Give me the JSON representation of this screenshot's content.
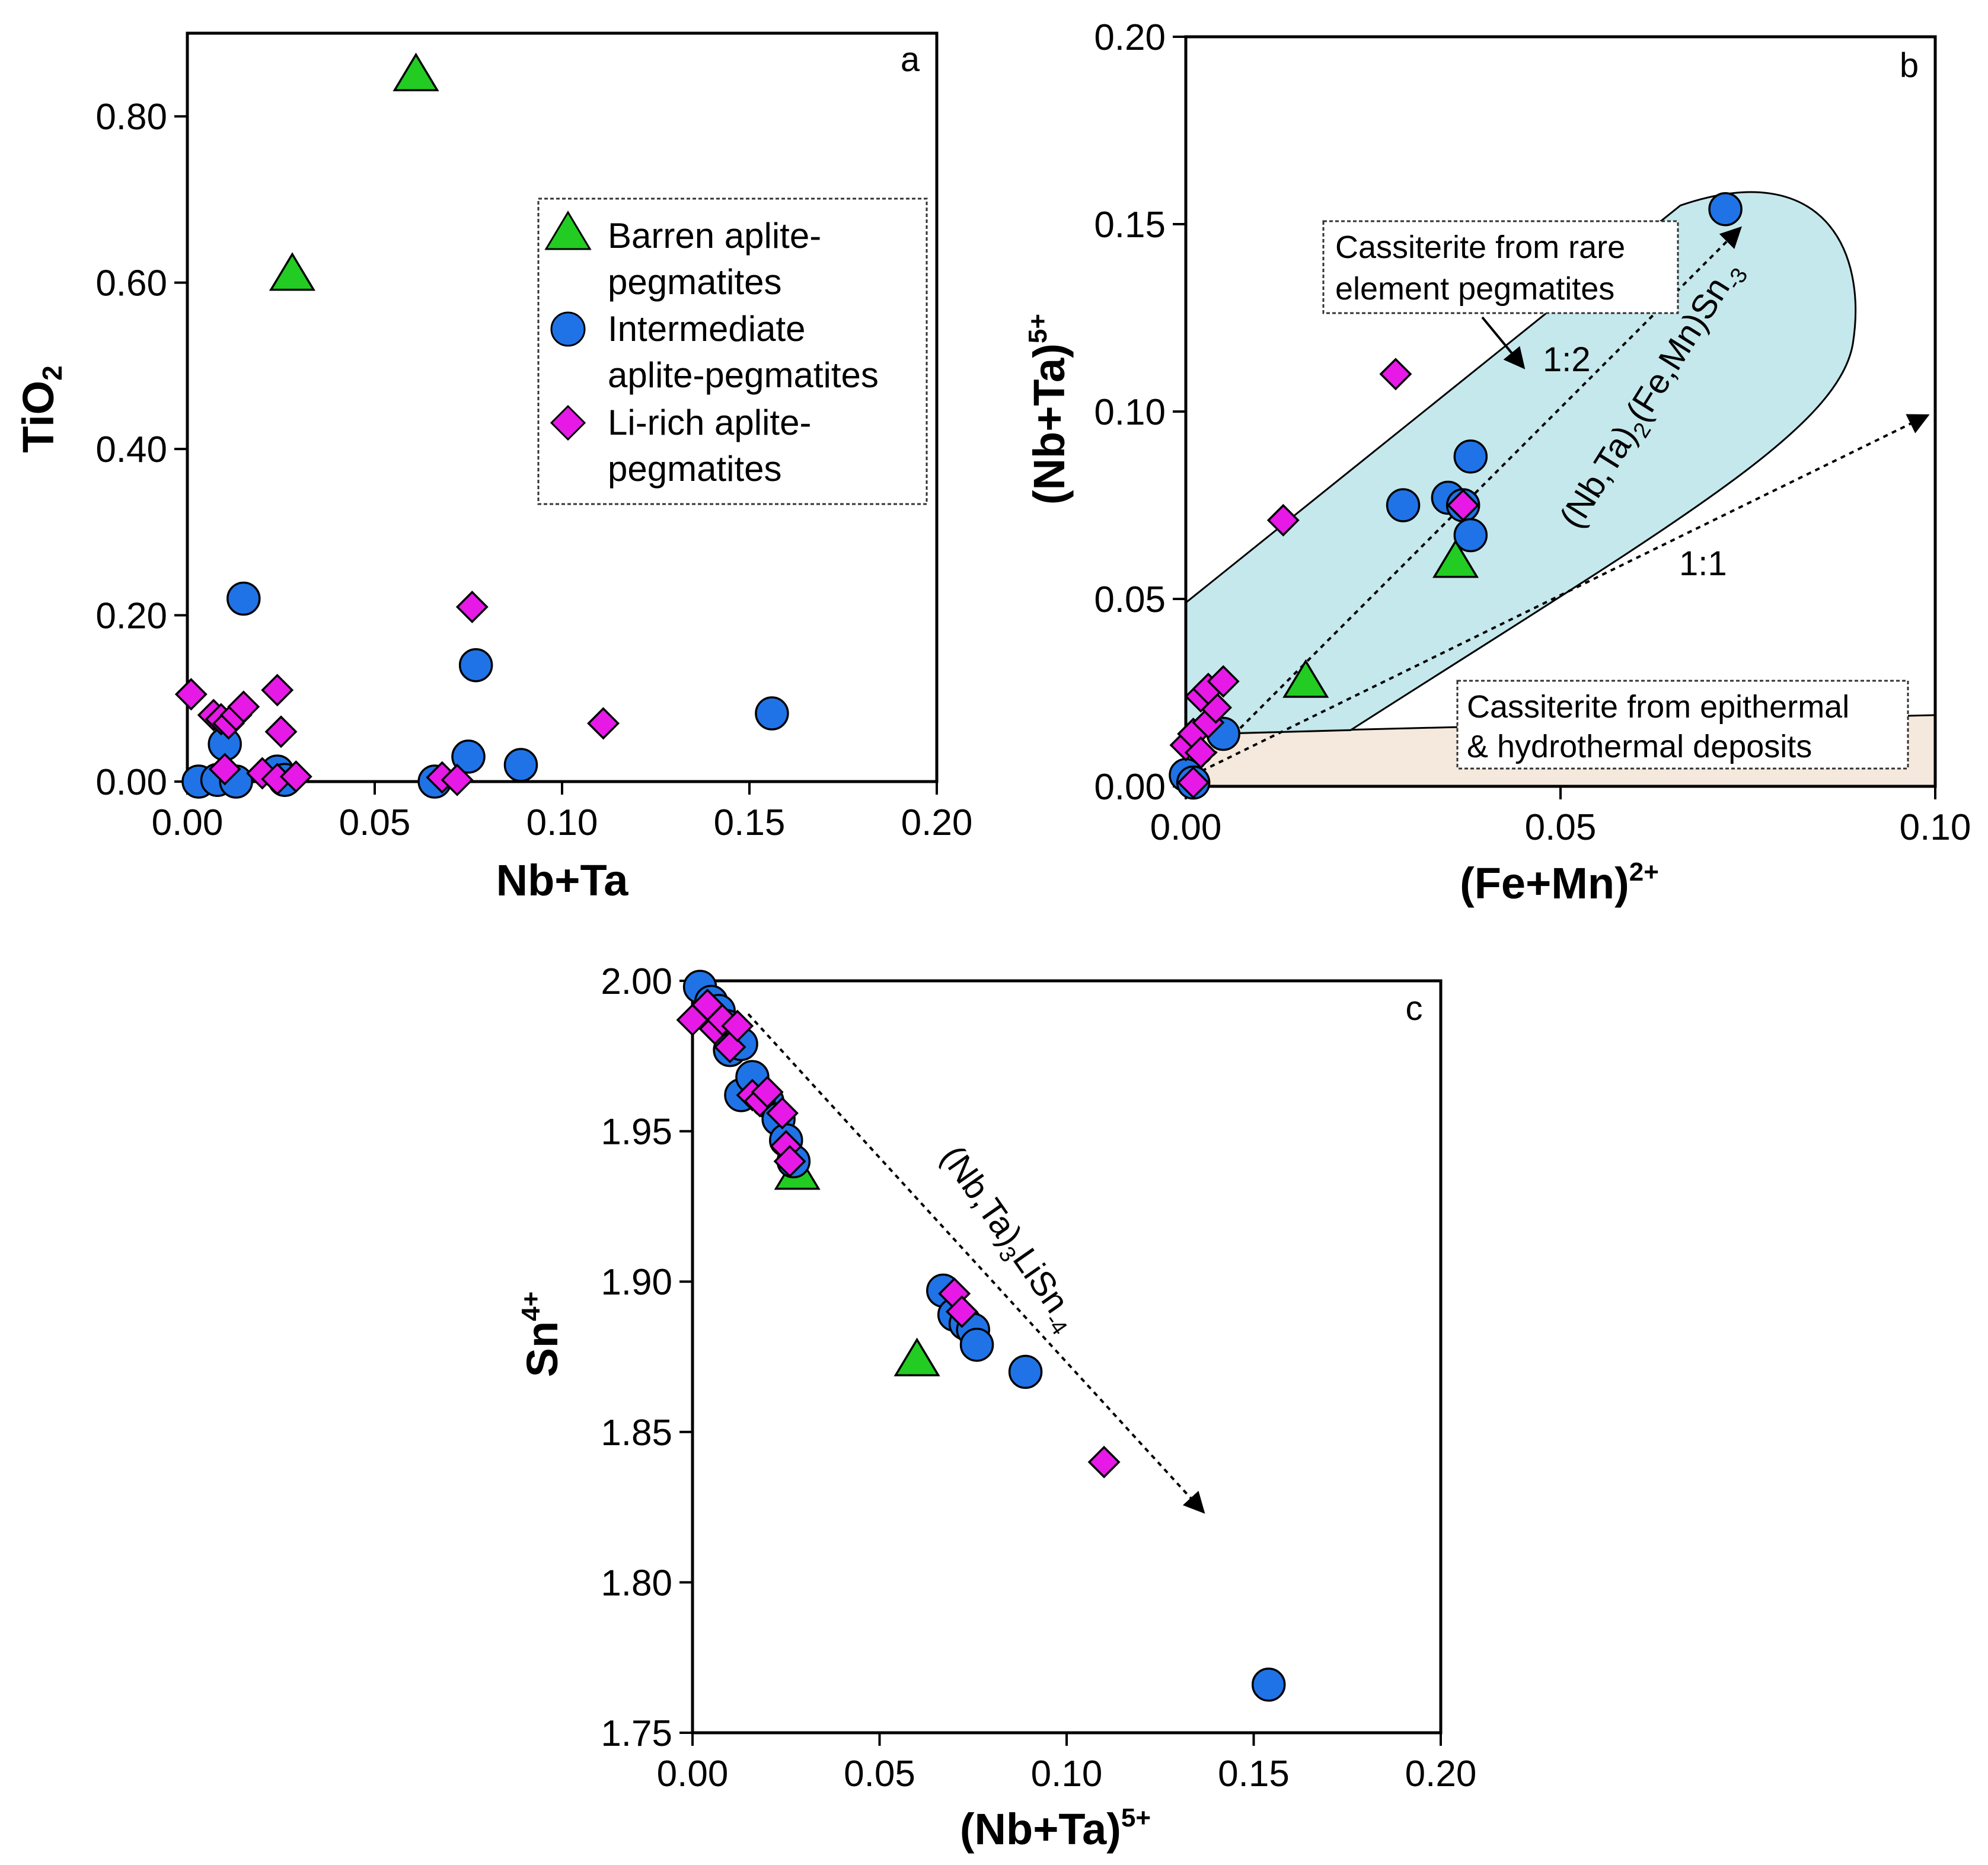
{
  "colors": {
    "barren": "#22cc22",
    "intermediate": "#1f73e6",
    "li_rich": "#e619e6",
    "rare_field": "#bfe6ea",
    "epithermal_field": "#f5e8dc",
    "outline": "#000000"
  },
  "legend": {
    "barren": {
      "line1": "Barren aplite-",
      "line2": "pegmatites",
      "icon": "triangle-marker"
    },
    "intermediate": {
      "line1": "Intermediate",
      "line2": "aplite-pegmatites",
      "icon": "circle-marker"
    },
    "li_rich": {
      "line1": "Li-rich aplite-",
      "line2": "pegmatites",
      "icon": "diamond-marker"
    }
  },
  "chart_data": [
    {
      "panel": "a",
      "type": "scatter",
      "title": "",
      "xlabel": "Nb+Ta",
      "ylabel": {
        "base": "TiO",
        "sub": "2"
      },
      "xlim": [
        0,
        0.2
      ],
      "ylim": [
        0,
        0.9
      ],
      "xticks": [
        0,
        0.05,
        0.1,
        0.15,
        0.2
      ],
      "xtick_labels": [
        "0.00",
        "0.05",
        "0.10",
        "0.15",
        "0.20"
      ],
      "yticks": [
        0,
        0.2,
        0.4,
        0.6,
        0.8
      ],
      "ytick_labels": [
        "0.00",
        "0.20",
        "0.40",
        "0.60",
        "0.80"
      ],
      "legend_position": "center-right",
      "series": [
        {
          "name": "Barren aplite-pegmatites",
          "marker": "triangle",
          "points": [
            [
              0.061,
              0.85
            ],
            [
              0.028,
              0.61
            ]
          ]
        },
        {
          "name": "Intermediate aplite-pegmatites",
          "marker": "circle",
          "points": [
            [
              0.003,
              0.0
            ],
            [
              0.008,
              0.002
            ],
            [
              0.01,
              0.045
            ],
            [
              0.013,
              0.0
            ],
            [
              0.015,
              0.22
            ],
            [
              0.024,
              0.012
            ],
            [
              0.026,
              0.002
            ],
            [
              0.066,
              0.0
            ],
            [
              0.075,
              0.03
            ],
            [
              0.077,
              0.14
            ],
            [
              0.089,
              0.02
            ],
            [
              0.156,
              0.082
            ]
          ]
        },
        {
          "name": "Li-rich aplite-pegmatites",
          "marker": "diamond",
          "points": [
            [
              0.001,
              0.105
            ],
            [
              0.007,
              0.08
            ],
            [
              0.009,
              0.075
            ],
            [
              0.011,
              0.07
            ],
            [
              0.013,
              0.08
            ],
            [
              0.015,
              0.09
            ],
            [
              0.01,
              0.015
            ],
            [
              0.02,
              0.01
            ],
            [
              0.024,
              0.11
            ],
            [
              0.025,
              0.06
            ],
            [
              0.024,
              0.003
            ],
            [
              0.029,
              0.006
            ],
            [
              0.068,
              0.005
            ],
            [
              0.072,
              0.002
            ],
            [
              0.076,
              0.21
            ],
            [
              0.111,
              0.07
            ]
          ]
        }
      ]
    },
    {
      "panel": "b",
      "type": "scatter",
      "title": "",
      "xlabel": {
        "base": "(Fe+Mn)",
        "sup": "2+"
      },
      "ylabel": {
        "base": "(Nb+Ta)",
        "sup": "5+"
      },
      "xlim": [
        0,
        0.1
      ],
      "ylim": [
        0,
        0.2
      ],
      "xticks": [
        0,
        0.05,
        0.1
      ],
      "xtick_labels": [
        "0.00",
        "0.05",
        "0.10"
      ],
      "yticks": [
        0,
        0.05,
        0.1,
        0.15,
        0.2
      ],
      "ytick_labels": [
        "0.00",
        "0.05",
        "0.10",
        "0.15",
        "0.20"
      ],
      "annotations": {
        "rare_field_label": [
          "Cassiterite from rare",
          "element pegmatites"
        ],
        "epithermal_field_label": [
          "Cassiterite from epithermal",
          "& hydrothermal deposits"
        ],
        "ratio_1_2": "1:2",
        "ratio_1_1": "1:1",
        "formula": {
          "p1": "(Nb,Ta)",
          "s1": "2",
          "p2": "(Fe,Mn)Sn",
          "s2": "-3"
        }
      },
      "series": [
        {
          "name": "Barren aplite-pegmatites",
          "marker": "triangle",
          "points": [
            [
              0.016,
              0.028
            ],
            [
              0.036,
              0.06
            ]
          ]
        },
        {
          "name": "Intermediate aplite-pegmatites",
          "marker": "circle",
          "points": [
            [
              0.0,
              0.003
            ],
            [
              0.001,
              0.001
            ],
            [
              0.005,
              0.014
            ],
            [
              0.029,
              0.075
            ],
            [
              0.035,
              0.077
            ],
            [
              0.037,
              0.075
            ],
            [
              0.038,
              0.067
            ],
            [
              0.038,
              0.088
            ],
            [
              0.072,
              0.154
            ]
          ]
        },
        {
          "name": "Li-rich aplite-pegmatites",
          "marker": "diamond",
          "points": [
            [
              0.0,
              0.011
            ],
            [
              0.001,
              0.014
            ],
            [
              0.002,
              0.009
            ],
            [
              0.001,
              0.001
            ],
            [
              0.003,
              0.017
            ],
            [
              0.004,
              0.021
            ],
            [
              0.002,
              0.024
            ],
            [
              0.003,
              0.026
            ],
            [
              0.005,
              0.028
            ],
            [
              0.013,
              0.071
            ],
            [
              0.028,
              0.11
            ],
            [
              0.037,
              0.075
            ]
          ]
        }
      ]
    },
    {
      "panel": "c",
      "type": "scatter",
      "title": "",
      "xlabel": {
        "base": "(Nb+Ta)",
        "sup": "5+"
      },
      "ylabel": {
        "base": "Sn",
        "sup": "4+"
      },
      "xlim": [
        0,
        0.2
      ],
      "ylim": [
        1.75,
        2.0
      ],
      "xticks": [
        0,
        0.05,
        0.1,
        0.15,
        0.2
      ],
      "xtick_labels": [
        "0.00",
        "0.05",
        "0.10",
        "0.15",
        "0.20"
      ],
      "yticks": [
        1.75,
        1.8,
        1.85,
        1.9,
        1.95,
        2.0
      ],
      "ytick_labels": [
        "1.75",
        "1.80",
        "1.85",
        "1.90",
        "1.95",
        "2.00"
      ],
      "annotations": {
        "formula": {
          "p1": "(Nb,Ta)",
          "s1": "3",
          "p2": "LiSn",
          "s2": "-4"
        }
      },
      "series": [
        {
          "name": "Barren aplite-pegmatites",
          "marker": "triangle",
          "points": [
            [
              0.028,
              1.936
            ],
            [
              0.06,
              1.874
            ]
          ]
        },
        {
          "name": "Intermediate aplite-pegmatites",
          "marker": "circle",
          "points": [
            [
              0.002,
              1.998
            ],
            [
              0.005,
              1.993
            ],
            [
              0.007,
              1.99
            ],
            [
              0.009,
              1.985
            ],
            [
              0.01,
              1.977
            ],
            [
              0.013,
              1.979
            ],
            [
              0.013,
              1.962
            ],
            [
              0.016,
              1.968
            ],
            [
              0.02,
              1.96
            ],
            [
              0.023,
              1.954
            ],
            [
              0.025,
              1.947
            ],
            [
              0.027,
              1.94
            ],
            [
              0.067,
              1.897
            ],
            [
              0.07,
              1.889
            ],
            [
              0.073,
              1.886
            ],
            [
              0.075,
              1.884
            ],
            [
              0.076,
              1.879
            ],
            [
              0.089,
              1.87
            ],
            [
              0.154,
              1.766
            ]
          ]
        },
        {
          "name": "Li-rich aplite-pegmatites",
          "marker": "diamond",
          "points": [
            [
              0.0,
              1.987
            ],
            [
              0.004,
              1.992
            ],
            [
              0.006,
              1.984
            ],
            [
              0.008,
              1.987
            ],
            [
              0.01,
              1.978
            ],
            [
              0.012,
              1.985
            ],
            [
              0.016,
              1.962
            ],
            [
              0.018,
              1.96
            ],
            [
              0.02,
              1.963
            ],
            [
              0.024,
              1.956
            ],
            [
              0.025,
              1.945
            ],
            [
              0.026,
              1.94
            ],
            [
              0.07,
              1.896
            ],
            [
              0.072,
              1.89
            ],
            [
              0.11,
              1.84
            ]
          ]
        }
      ]
    }
  ]
}
